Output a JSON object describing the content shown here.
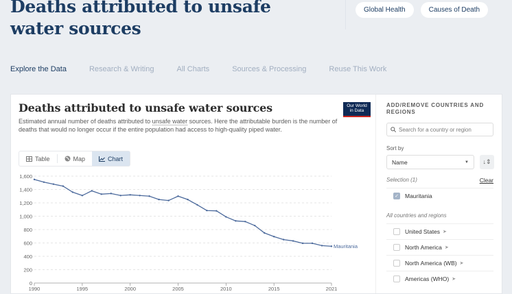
{
  "header": {
    "title": "Deaths attributed to unsafe water sources",
    "tags": [
      "Global Health",
      "Causes of Death"
    ]
  },
  "nav": {
    "tabs": [
      {
        "label": "Explore the Data",
        "active": true
      },
      {
        "label": "Research & Writing",
        "active": false
      },
      {
        "label": "All Charts",
        "active": false
      },
      {
        "label": "Sources & Processing",
        "active": false
      },
      {
        "label": "Reuse This Work",
        "active": false
      }
    ]
  },
  "card": {
    "title": "Deaths attributed to unsafe water sources",
    "subtitle_pre": "Estimated annual number of deaths attributed to ",
    "subtitle_link": "unsafe water",
    "subtitle_post": " sources. Here the attributable burden is the number of deaths that would no longer occur if the entire population had access to high-quality piped water.",
    "logo_line1": "Our World",
    "logo_line2": "in Data",
    "view_tabs": [
      {
        "label": "Table",
        "icon": "table-icon",
        "active": false
      },
      {
        "label": "Map",
        "icon": "globe-icon",
        "active": false
      },
      {
        "label": "Chart",
        "icon": "line-chart-icon",
        "active": true
      }
    ]
  },
  "panel": {
    "heading": "ADD/REMOVE COUNTRIES AND REGIONS",
    "search_placeholder": "Search for a country or region",
    "sort_label": "Sort by",
    "sort_value": "Name",
    "selection_label": "Selection (1)",
    "clear_label": "Clear",
    "selected": [
      "Mauritania"
    ],
    "all_label": "All countries and regions",
    "entities": [
      "United States",
      "North America",
      "North America (WB)",
      "Americas (WHO)"
    ]
  },
  "colors": {
    "line": "#4c6a9c",
    "title": "#1d3d63"
  },
  "chart_data": {
    "type": "line",
    "title": "Deaths attributed to unsafe water sources",
    "xlabel": "",
    "ylabel": "",
    "x": [
      1990,
      1991,
      1992,
      1993,
      1994,
      1995,
      1996,
      1997,
      1998,
      1999,
      2000,
      2001,
      2002,
      2003,
      2004,
      2005,
      2006,
      2007,
      2008,
      2009,
      2010,
      2011,
      2012,
      2013,
      2014,
      2015,
      2016,
      2017,
      2018,
      2019,
      2020,
      2021
    ],
    "series": [
      {
        "name": "Mauritania",
        "values": [
          1550,
          1510,
          1480,
          1450,
          1360,
          1310,
          1380,
          1330,
          1340,
          1310,
          1320,
          1310,
          1300,
          1250,
          1235,
          1300,
          1250,
          1170,
          1085,
          1080,
          990,
          930,
          920,
          860,
          750,
          695,
          650,
          630,
          595,
          595,
          560,
          550
        ]
      }
    ],
    "xticks": [
      1990,
      1995,
      2000,
      2005,
      2010,
      2015,
      2021
    ],
    "yticks": [
      0,
      200,
      400,
      600,
      800,
      1000,
      1200,
      1400,
      1600
    ],
    "ytick_labels": [
      "0",
      "200",
      "400",
      "600",
      "800",
      "1,000",
      "1,200",
      "1,400",
      "1,600"
    ],
    "ylim": [
      0,
      1600
    ],
    "xlim": [
      1990,
      2021
    ],
    "grid": "horizontal-dashed",
    "legend": "end-of-line label"
  }
}
